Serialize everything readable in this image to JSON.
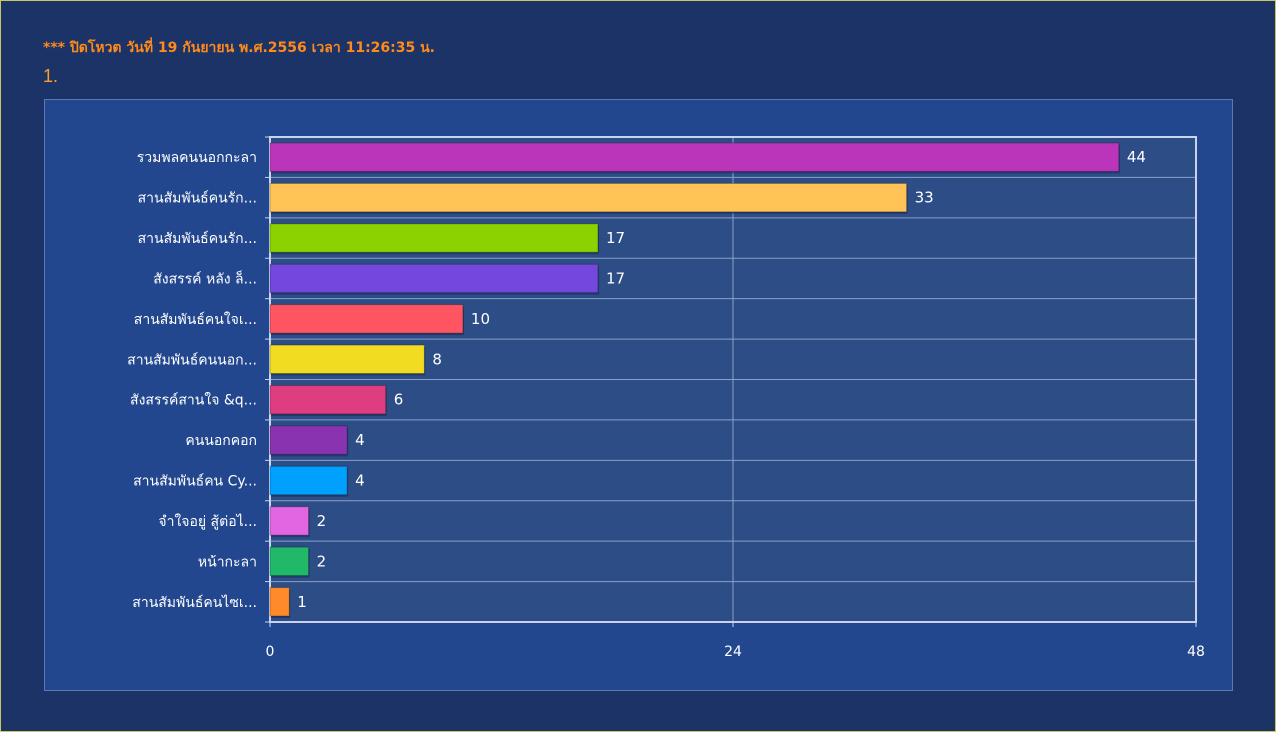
{
  "notice": "*** ปิดโหวต วันที่ 19 กันยายน พ.ศ.2556 เวลา 11:26:35 น.",
  "question_number": "1.",
  "colors": {
    "background": "#1b3366",
    "panel": "#23478e",
    "plot": "#2d4d86",
    "notice": "#ff8a1c"
  },
  "chart_data": {
    "type": "bar",
    "orientation": "horizontal",
    "categories": [
      "รวมพลคนนอกกะลา",
      "สานสัมพันธ์คนรัก...",
      "สานสัมพันธ์คนรัก...",
      "สังสรรค์ หลัง ล็...",
      "สานสัมพันธ์คนใจเ...",
      "สานสัมพันธ์คนนอก...",
      "สังสรรค์สานใจ &q...",
      "คนนอกคอก",
      "สานสัมพันธ์คน Cy...",
      "จำใจอยู่ สู้ต่อไ...",
      "หน้ากะลา",
      "สานสัมพันธ์คนไซเ..."
    ],
    "values": [
      44,
      33,
      17,
      17,
      10,
      8,
      6,
      4,
      4,
      2,
      2,
      1
    ],
    "bar_colors": [
      "#bb35bb",
      "#ffc455",
      "#8cd200",
      "#7448dc",
      "#ff5562",
      "#f1dc22",
      "#de3e7f",
      "#8a33b0",
      "#00a0ff",
      "#e265e2",
      "#22b86a",
      "#ff8a2a"
    ],
    "xlim": [
      0,
      48
    ],
    "xticks": [
      "0",
      "24",
      "48"
    ],
    "grid": true,
    "title": "",
    "xlabel": "",
    "ylabel": ""
  }
}
